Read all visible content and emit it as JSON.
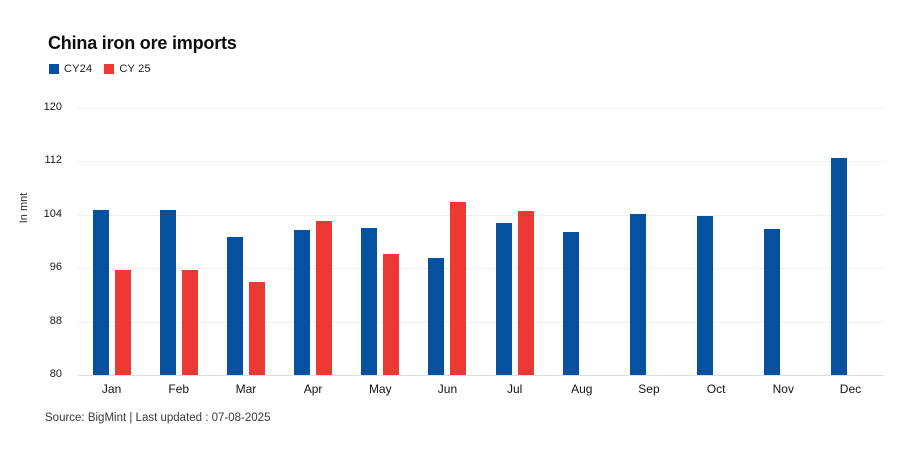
{
  "header": {
    "title": "China iron ore imports"
  },
  "legend": [
    {
      "label": "CY24",
      "color": "#0551A0"
    },
    {
      "label": "CY 25",
      "color": "#ED3833"
    }
  ],
  "chart_data": {
    "type": "bar",
    "title": "China iron ore imports",
    "xlabel": "",
    "ylabel": "In mnt",
    "ylim": [
      80,
      120
    ],
    "yticks": [
      80,
      88,
      96,
      104,
      112,
      120
    ],
    "grid": true,
    "legend_position": "top-left",
    "categories": [
      "Jan",
      "Feb",
      "Mar",
      "Apr",
      "May",
      "Jun",
      "Jul",
      "Aug",
      "Sep",
      "Oct",
      "Nov",
      "Dec"
    ],
    "series": [
      {
        "name": "CY24",
        "color": "#0551A0",
        "values": [
          104.7,
          104.7,
          100.7,
          101.8,
          102.0,
          97.6,
          102.8,
          101.4,
          104.1,
          103.8,
          101.9,
          112.5
        ]
      },
      {
        "name": "CY 25",
        "color": "#ED3833",
        "values": [
          95.7,
          95.7,
          94.0,
          103.1,
          98.1,
          105.9,
          104.6,
          null,
          null,
          null,
          null,
          null
        ]
      }
    ]
  },
  "footer": {
    "source": "Source: BigMint | Last updated : 07-08-2025"
  }
}
